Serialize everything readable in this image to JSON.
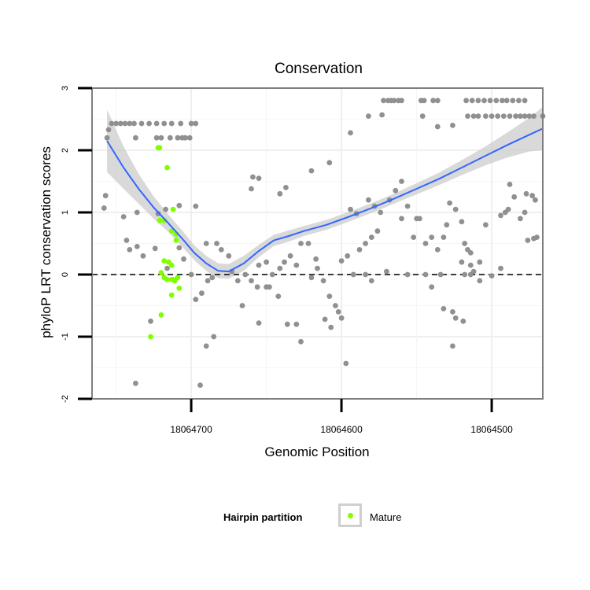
{
  "chart_data": {
    "type": "scatter",
    "title": "Conservation",
    "xlabel": "Genomic Position",
    "ylabel": "phyloP LRT conservation scores",
    "x_axis_reversed": true,
    "xlim": [
      18064766,
      18064466
    ],
    "ylim": [
      -2,
      3
    ],
    "x_ticks": [
      18064700,
      18064600,
      18064500
    ],
    "x_tick_labels": [
      "18064700",
      "18064600",
      "18064500"
    ],
    "y_ticks": [
      -2,
      -1,
      0,
      1,
      2,
      3
    ],
    "y_tick_labels": [
      "-2",
      "-1",
      "0",
      "1",
      "2",
      "3"
    ],
    "reference_line": {
      "y": 0,
      "style": "dashed"
    },
    "grid": true,
    "legend": {
      "title": "Hairpin partition",
      "entries": [
        "Mature"
      ],
      "placement": "bottom"
    },
    "colors": {
      "other": "#909090",
      "mature": "#80ff00",
      "smooth": "#3366ff",
      "ribbon": "#cccccc"
    },
    "series": [
      {
        "name": "",
        "color": "#909090",
        "points": [
          [
            18064753,
            2.43
          ],
          [
            18064750,
            2.43
          ],
          [
            18064747,
            2.43
          ],
          [
            18064744,
            2.43
          ],
          [
            18064741,
            2.43
          ],
          [
            18064738,
            2.43
          ],
          [
            18064733,
            2.43
          ],
          [
            18064728,
            2.43
          ],
          [
            18064723,
            2.43
          ],
          [
            18064718,
            2.43
          ],
          [
            18064713,
            2.43
          ],
          [
            18064707,
            2.43
          ],
          [
            18064700,
            2.43
          ],
          [
            18064697,
            2.43
          ],
          [
            18064737,
            2.2
          ],
          [
            18064723,
            2.2
          ],
          [
            18064720,
            2.2
          ],
          [
            18064714,
            2.2
          ],
          [
            18064709,
            2.2
          ],
          [
            18064706,
            2.2
          ],
          [
            18064704,
            2.2
          ],
          [
            18064701,
            2.2
          ],
          [
            18064756,
            2.2
          ],
          [
            18064755,
            2.33
          ],
          [
            18064757,
            1.27
          ],
          [
            18064758,
            1.07
          ],
          [
            18064745,
            0.93
          ],
          [
            18064736,
            1.0
          ],
          [
            18064722,
            0.98
          ],
          [
            18064717,
            1.05
          ],
          [
            18064708,
            1.11
          ],
          [
            18064697,
            1.1
          ],
          [
            18064743,
            0.55
          ],
          [
            18064741,
            0.4
          ],
          [
            18064736,
            0.45
          ],
          [
            18064732,
            0.3
          ],
          [
            18064724,
            0.42
          ],
          [
            18064716,
            0.1
          ],
          [
            18064708,
            0.43
          ],
          [
            18064700,
            0.0
          ],
          [
            18064697,
            -0.4
          ],
          [
            18064693,
            -0.3
          ],
          [
            18064689,
            -0.1
          ],
          [
            18064727,
            -0.75
          ],
          [
            18064690,
            -1.15
          ],
          [
            18064685,
            -1.0
          ],
          [
            18064737,
            -1.75
          ],
          [
            18064694,
            -1.78
          ],
          [
            18064675,
            0.3
          ],
          [
            18064683,
            0.5
          ],
          [
            18064664,
            0.0
          ],
          [
            18064660,
            -0.1
          ],
          [
            18064655,
            0.15
          ],
          [
            18064650,
            0.2
          ],
          [
            18064646,
            0.0
          ],
          [
            18064641,
            0.1
          ],
          [
            18064638,
            0.2
          ],
          [
            18064634,
            0.3
          ],
          [
            18064630,
            0.15
          ],
          [
            18064627,
            0.5
          ],
          [
            18064622,
            0.5
          ],
          [
            18064617,
            0.25
          ],
          [
            18064612,
            -0.1
          ],
          [
            18064608,
            -0.35
          ],
          [
            18064604,
            -0.5
          ],
          [
            18064600,
            -0.7
          ],
          [
            18064596,
            0.3
          ],
          [
            18064592,
            0.0
          ],
          [
            18064588,
            0.4
          ],
          [
            18064584,
            0.5
          ],
          [
            18064580,
            0.6
          ],
          [
            18064576,
            0.7
          ],
          [
            18064648,
            -0.2
          ],
          [
            18064642,
            -0.35
          ],
          [
            18064636,
            -0.8
          ],
          [
            18064630,
            -0.8
          ],
          [
            18064627,
            -1.08
          ],
          [
            18064611,
            -0.72
          ],
          [
            18064607,
            -0.85
          ],
          [
            18064602,
            -0.6
          ],
          [
            18064597,
            -1.43
          ],
          [
            18064659,
            1.57
          ],
          [
            18064655,
            1.55
          ],
          [
            18064641,
            1.3
          ],
          [
            18064637,
            1.4
          ],
          [
            18064620,
            1.67
          ],
          [
            18064608,
            1.8
          ],
          [
            18064594,
            2.28
          ],
          [
            18064582,
            2.55
          ],
          [
            18064573,
            2.57
          ],
          [
            18064572,
            2.8
          ],
          [
            18064569,
            2.8
          ],
          [
            18064567,
            2.8
          ],
          [
            18064565,
            2.8
          ],
          [
            18064562,
            2.8
          ],
          [
            18064560,
            2.8
          ],
          [
            18064547,
            2.8
          ],
          [
            18064545,
            2.8
          ],
          [
            18064539,
            2.8
          ],
          [
            18064536,
            2.8
          ],
          [
            18064546,
            2.55
          ],
          [
            18064536,
            2.38
          ],
          [
            18064526,
            2.4
          ],
          [
            18064594,
            1.05
          ],
          [
            18064590,
            0.98
          ],
          [
            18064582,
            1.2
          ],
          [
            18064578,
            1.1
          ],
          [
            18064574,
            1.0
          ],
          [
            18064568,
            1.2
          ],
          [
            18064564,
            1.35
          ],
          [
            18064560,
            1.5
          ],
          [
            18064556,
            1.1
          ],
          [
            18064552,
            0.6
          ],
          [
            18064548,
            0.9
          ],
          [
            18064544,
            0.5
          ],
          [
            18064540,
            0.6
          ],
          [
            18064536,
            0.4
          ],
          [
            18064532,
            0.6
          ],
          [
            18064528,
            1.15
          ],
          [
            18064524,
            1.05
          ],
          [
            18064520,
            0.85
          ],
          [
            18064516,
            0.4
          ],
          [
            18064512,
            0.05
          ],
          [
            18064508,
            0.2
          ],
          [
            18064534,
            0.0
          ],
          [
            18064532,
            -0.55
          ],
          [
            18064526,
            -0.6
          ],
          [
            18064524,
            -0.7
          ],
          [
            18064519,
            -0.75
          ],
          [
            18064526,
            -1.15
          ],
          [
            18064508,
            -0.1
          ],
          [
            18064514,
            0.0
          ],
          [
            18064518,
            0.0
          ],
          [
            18064520,
            0.2
          ],
          [
            18064514,
            0.15
          ],
          [
            18064518,
            0.5
          ],
          [
            18064540,
            -0.2
          ],
          [
            18064544,
            0.0
          ],
          [
            18064580,
            -0.1
          ],
          [
            18064584,
            0.0
          ],
          [
            18064556,
            0.0
          ],
          [
            18064570,
            0.05
          ],
          [
            18064500,
            -0.02
          ],
          [
            18064494,
            0.1
          ],
          [
            18064478,
            2.55
          ],
          [
            18064475,
            2.55
          ],
          [
            18064472,
            2.55
          ],
          [
            18064466,
            2.55
          ],
          [
            18064516,
            2.55
          ],
          [
            18064512,
            2.55
          ],
          [
            18064509,
            2.55
          ],
          [
            18064504,
            2.55
          ],
          [
            18064500,
            2.55
          ],
          [
            18064496,
            2.55
          ],
          [
            18064492,
            2.55
          ],
          [
            18064488,
            2.55
          ],
          [
            18064484,
            2.55
          ],
          [
            18064481,
            2.55
          ],
          [
            18064517,
            2.8
          ],
          [
            18064513,
            2.8
          ],
          [
            18064509,
            2.8
          ],
          [
            18064505,
            2.8
          ],
          [
            18064501,
            2.8
          ],
          [
            18064497,
            2.8
          ],
          [
            18064493,
            2.8
          ],
          [
            18064490,
            2.8
          ],
          [
            18064486,
            2.8
          ],
          [
            18064482,
            2.8
          ],
          [
            18064478,
            2.8
          ],
          [
            18064477,
            1.3
          ],
          [
            18064473,
            1.27
          ],
          [
            18064471,
            1.2
          ],
          [
            18064478,
            1.0
          ],
          [
            18064485,
            1.25
          ],
          [
            18064489,
            1.05
          ],
          [
            18064491,
            1.0
          ],
          [
            18064488,
            1.45
          ],
          [
            18064494,
            0.95
          ],
          [
            18064472,
            0.58
          ],
          [
            18064470,
            0.6
          ],
          [
            18064476,
            0.55
          ],
          [
            18064481,
            0.9
          ],
          [
            18064504,
            0.8
          ],
          [
            18064514,
            0.35
          ],
          [
            18064530,
            0.8
          ],
          [
            18064550,
            0.9
          ],
          [
            18064560,
            0.9
          ],
          [
            18064600,
            0.22
          ],
          [
            18064616,
            0.1
          ],
          [
            18064620,
            -0.05
          ],
          [
            18064656,
            -0.2
          ],
          [
            18064666,
            -0.5
          ],
          [
            18064655,
            -0.78
          ],
          [
            18064650,
            -0.2
          ],
          [
            18064669,
            -0.1
          ],
          [
            18064673,
            0.05
          ],
          [
            18064680,
            0.4
          ],
          [
            18064686,
            -0.05
          ],
          [
            18064690,
            0.5
          ],
          [
            18064711,
            -0.1
          ],
          [
            18064705,
            0.25
          ],
          [
            18064660,
            1.38
          ]
        ]
      },
      {
        "name": "Mature",
        "color": "#80ff00",
        "points": [
          [
            18064722,
            2.04
          ],
          [
            18064721,
            2.04
          ],
          [
            18064716,
            1.72
          ],
          [
            18064718,
            0.87
          ],
          [
            18064721,
            0.87
          ],
          [
            18064712,
            1.05
          ],
          [
            18064713,
            0.7
          ],
          [
            18064710,
            0.65
          ],
          [
            18064710,
            0.55
          ],
          [
            18064718,
            0.22
          ],
          [
            18064715,
            0.2
          ],
          [
            18064713,
            0.15
          ],
          [
            18064720,
            0.03
          ],
          [
            18064718,
            -0.05
          ],
          [
            18064716,
            -0.08
          ],
          [
            18064713,
            -0.08
          ],
          [
            18064711,
            -0.1
          ],
          [
            18064709,
            -0.05
          ],
          [
            18064708,
            -0.22
          ],
          [
            18064713,
            -0.33
          ],
          [
            18064720,
            -0.65
          ],
          [
            18064727,
            -1.0
          ],
          [
            18064712,
            -0.08
          ]
        ]
      }
    ],
    "smooth_fit": {
      "x": [
        18064756,
        18064745,
        18064735,
        18064725,
        18064715,
        18064705,
        18064698,
        18064690,
        18064682,
        18064675,
        18064665,
        18064655,
        18064645,
        18064635,
        18064625,
        18064610,
        18064595,
        18064580,
        18064565,
        18064550,
        18064535,
        18064520,
        18064505,
        18064490,
        18064475,
        18064466
      ],
      "y": [
        2.15,
        1.72,
        1.38,
        1.08,
        0.82,
        0.55,
        0.35,
        0.18,
        0.06,
        0.05,
        0.18,
        0.38,
        0.55,
        0.62,
        0.7,
        0.8,
        0.93,
        1.07,
        1.22,
        1.38,
        1.54,
        1.72,
        1.9,
        2.08,
        2.25,
        2.35
      ],
      "band": [
        0.5,
        0.34,
        0.24,
        0.18,
        0.14,
        0.13,
        0.12,
        0.12,
        0.12,
        0.12,
        0.12,
        0.1,
        0.09,
        0.09,
        0.08,
        0.08,
        0.08,
        0.08,
        0.08,
        0.09,
        0.1,
        0.12,
        0.15,
        0.2,
        0.27,
        0.35
      ]
    }
  }
}
